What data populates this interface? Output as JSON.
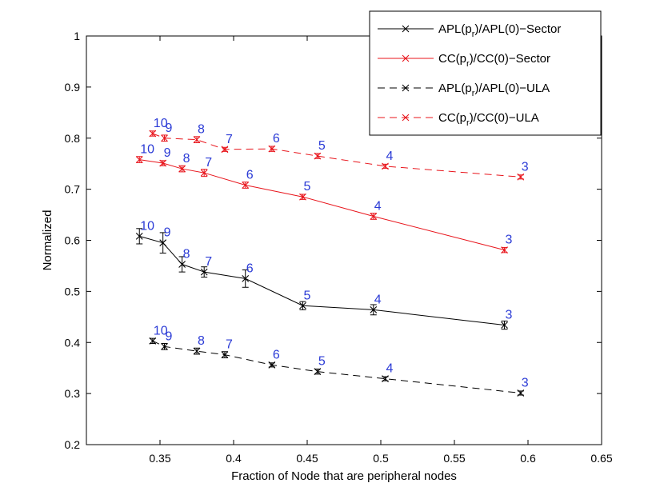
{
  "chart_data": {
    "type": "line",
    "xlabel": "Fraction of Node that are peripheral nodes",
    "ylabel": "Normalized",
    "xlim": [
      0.3,
      0.65
    ],
    "ylim": [
      0.2,
      1.0
    ],
    "xticks": [
      0.35,
      0.4,
      0.45,
      0.5,
      0.55,
      0.6,
      0.65
    ],
    "xtick_labels": [
      "0.35",
      "0.4",
      "0.45",
      "0.5",
      "0.55",
      "0.6",
      "0.65"
    ],
    "yticks": [
      0.2,
      0.3,
      0.4,
      0.5,
      0.6,
      0.7,
      0.8,
      0.9,
      1.0
    ],
    "ytick_labels": [
      "0.2",
      "0.3",
      "0.4",
      "0.5",
      "0.6",
      "0.7",
      "0.8",
      "0.9",
      "1"
    ],
    "grid": false,
    "legend_position": "top-right",
    "series": [
      {
        "name": "APL(p_r)/APL(0)-Sector",
        "legend_main": "APL(p",
        "legend_sub": "r",
        "legend_tail": ")/APL(0)−Sector",
        "color": "#000000",
        "dash": "solid",
        "marker": "x",
        "x": [
          0.336,
          0.352,
          0.365,
          0.38,
          0.408,
          0.447,
          0.495,
          0.584
        ],
        "y": [
          0.608,
          0.595,
          0.553,
          0.538,
          0.525,
          0.472,
          0.464,
          0.434
        ],
        "err": [
          0.015,
          0.02,
          0.015,
          0.01,
          0.017,
          0.008,
          0.01,
          0.008
        ],
        "labels": [
          "10",
          "9",
          "8",
          "7",
          "6",
          "5",
          "4",
          "3"
        ]
      },
      {
        "name": "CC(p_r)/CC(0)-Sector",
        "legend_main": "CC(p",
        "legend_sub": "r",
        "legend_tail": ")/CC(0)−Sector",
        "color": "#e8141b",
        "dash": "solid",
        "marker": "x",
        "x": [
          0.336,
          0.352,
          0.365,
          0.38,
          0.408,
          0.447,
          0.495,
          0.584
        ],
        "y": [
          0.758,
          0.751,
          0.74,
          0.732,
          0.708,
          0.685,
          0.647,
          0.581
        ],
        "err": [
          0.006,
          0.005,
          0.006,
          0.007,
          0.006,
          0.005,
          0.006,
          0.005
        ],
        "labels": [
          "10",
          "9",
          "8",
          "7",
          "6",
          "5",
          "4",
          "3"
        ]
      },
      {
        "name": "APL(p_r)/APL(0)-ULA",
        "legend_main": "APL(p",
        "legend_sub": "r",
        "legend_tail": ")/APL(0)−ULA",
        "color": "#000000",
        "dash": "dashed",
        "marker": "x",
        "x": [
          0.345,
          0.353,
          0.375,
          0.394,
          0.426,
          0.457,
          0.503,
          0.595
        ],
        "y": [
          0.403,
          0.392,
          0.383,
          0.376,
          0.356,
          0.343,
          0.329,
          0.301
        ],
        "err": [
          0.005,
          0.006,
          0.006,
          0.006,
          0.004,
          0.005,
          0.004,
          0.004
        ],
        "labels": [
          "10",
          "9",
          "8",
          "7",
          "6",
          "5",
          "4",
          "3"
        ]
      },
      {
        "name": "CC(p_r)/CC(0)-ULA",
        "legend_main": "CC(p",
        "legend_sub": "r",
        "legend_tail": ")/CC(0)−ULA",
        "color": "#e8141b",
        "dash": "dashed",
        "marker": "x",
        "x": [
          0.345,
          0.353,
          0.375,
          0.394,
          0.426,
          0.457,
          0.503,
          0.595
        ],
        "y": [
          0.809,
          0.8,
          0.797,
          0.778,
          0.779,
          0.765,
          0.745,
          0.724
        ],
        "err": [
          0.005,
          0.006,
          0.006,
          0.004,
          0.005,
          0.005,
          0.004,
          0.004
        ],
        "labels": [
          "10",
          "9",
          "8",
          "7",
          "6",
          "5",
          "4",
          "3"
        ]
      }
    ]
  }
}
